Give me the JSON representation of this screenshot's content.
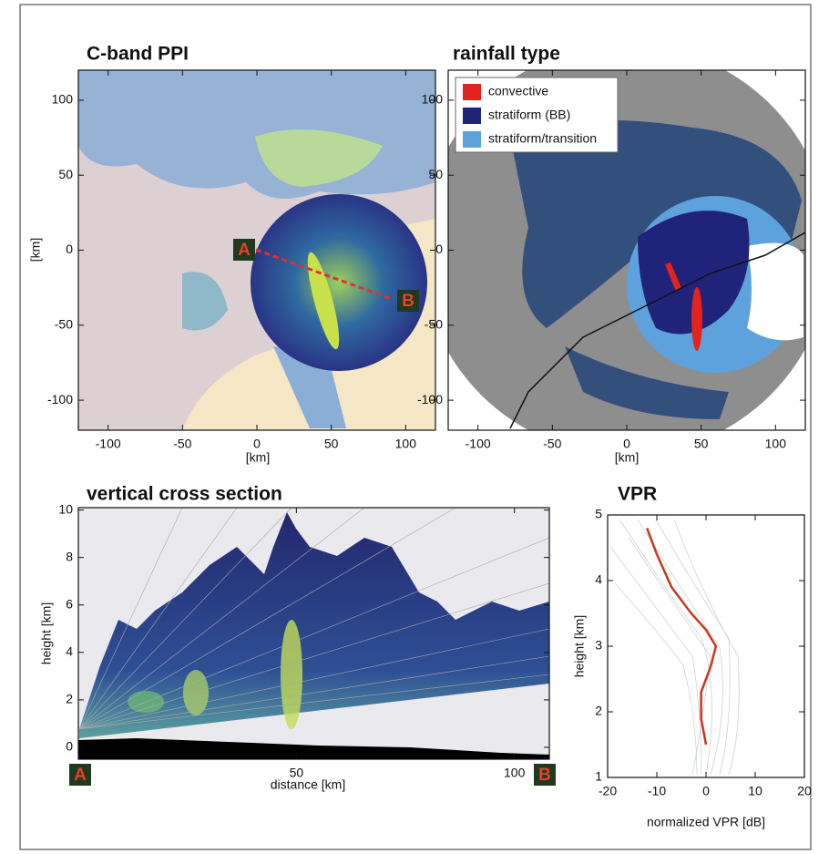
{
  "chart_data": [
    {
      "type": "map",
      "title": "C-band PPI",
      "x_label": "[km]",
      "y_label": "[km]",
      "xlim": [
        -120,
        120
      ],
      "ylim": [
        -120,
        120
      ],
      "xticks": [
        -100,
        -50,
        0,
        50,
        100
      ],
      "yticks": [
        -100,
        -50,
        0,
        50,
        100
      ],
      "annotations": [
        "A",
        "B"
      ]
    },
    {
      "type": "map",
      "title": "rainfall type",
      "x_label": "[km]",
      "xlim": [
        -120,
        120
      ],
      "ylim": [
        -120,
        120
      ],
      "xticks": [
        -100,
        -50,
        0,
        50,
        100
      ],
      "yticks": [
        -100,
        -50,
        0,
        50,
        100
      ],
      "legend": [
        {
          "name": "convective",
          "color": "#e3231e"
        },
        {
          "name": "stratiform (BB)",
          "color": "#1f237a"
        },
        {
          "name": "stratiform/transition",
          "color": "#5ea2dd"
        }
      ]
    },
    {
      "type": "cross-section",
      "title": "vertical cross section",
      "x_label": "distance [km]",
      "y_label": "height [km]",
      "xlim": [
        0,
        108
      ],
      "ylim": [
        -0.5,
        10.1
      ],
      "xticks": [
        50,
        100
      ],
      "yticks": [
        0,
        2,
        4,
        6,
        8,
        10
      ],
      "annotations": [
        "A",
        "B"
      ]
    },
    {
      "type": "line",
      "title": "VPR",
      "x_label": "normalized VPR [dB]",
      "y_label": "height [km]",
      "xlim": [
        -20,
        20
      ],
      "ylim": [
        1,
        5
      ],
      "xticks": [
        -20,
        -10,
        0,
        10,
        20
      ],
      "yticks": [
        1,
        2,
        3,
        4,
        5
      ],
      "x": [
        -12,
        -10,
        -7,
        -3,
        0,
        2,
        1,
        -1,
        -1,
        0
      ],
      "series": [
        {
          "color": "#c8371e",
          "values": [
            4.8,
            4.4,
            3.9,
            3.5,
            3.25,
            3.0,
            2.7,
            2.3,
            1.9,
            1.5
          ]
        }
      ]
    }
  ]
}
